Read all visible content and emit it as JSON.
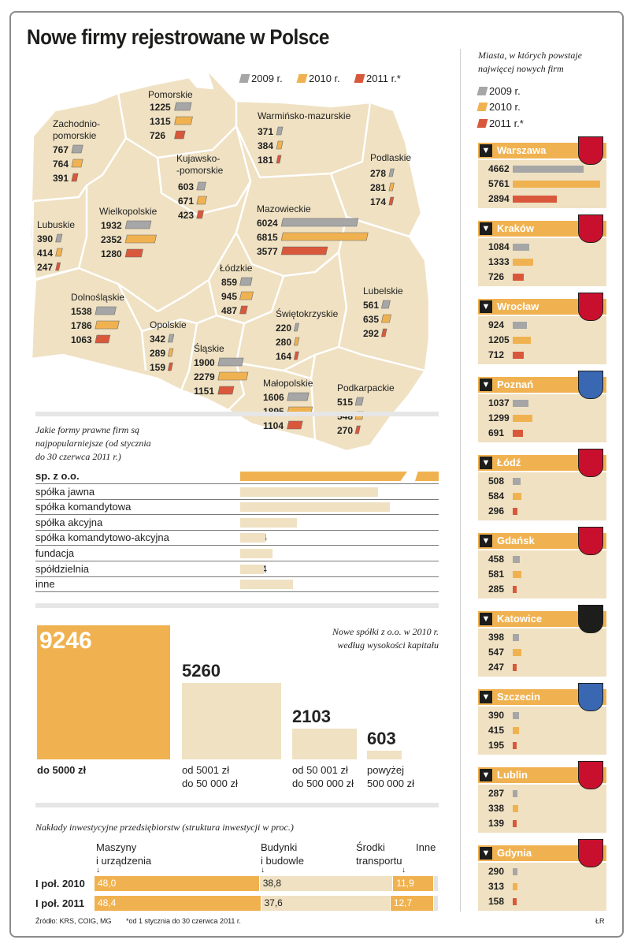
{
  "title": "Nowe firmy rejestrowane w Polsce",
  "legend": {
    "y2009": "2009 r.",
    "y2010": "2010 r.",
    "y2011": "2011 r.*"
  },
  "colors": {
    "y2009": "#a6a6a6",
    "y2010": "#f0b250",
    "y2011": "#d9583b",
    "map_fill": "#efe1c2",
    "panel": "#efe1c2"
  },
  "map": {
    "regions": [
      {
        "name": "Pomorskie",
        "values": [
          "1225",
          "1315",
          "726"
        ],
        "n": [
          1225,
          1315,
          726
        ]
      },
      {
        "name": "Zachodnio-\npomorskie",
        "line1": "Zachodnio-",
        "line2": "pomorskie",
        "values": [
          "767",
          "764",
          "391"
        ],
        "n": [
          767,
          764,
          391
        ]
      },
      {
        "name": "Warmińsko-mazurskie",
        "values": [
          "371",
          "384",
          "181"
        ],
        "n": [
          371,
          384,
          181
        ]
      },
      {
        "name": "Podlaskie",
        "values": [
          "278",
          "281",
          "174"
        ],
        "n": [
          278,
          281,
          174
        ]
      },
      {
        "name": "Kujawsko-\n-pomorskie",
        "line1": "Kujawsko-",
        "line2": "-pomorskie",
        "values": [
          "603",
          "671",
          "423"
        ],
        "n": [
          603,
          671,
          423
        ]
      },
      {
        "name": "Lubuskie",
        "values": [
          "390",
          "414",
          "247"
        ],
        "n": [
          390,
          414,
          247
        ]
      },
      {
        "name": "Wielkopolskie",
        "values": [
          "1932",
          "2352",
          "1280"
        ],
        "n": [
          1932,
          2352,
          1280
        ]
      },
      {
        "name": "Mazowieckie",
        "values": [
          "6024",
          "6815",
          "3577"
        ],
        "n": [
          6024,
          6815,
          3577
        ]
      },
      {
        "name": "Łódzkie",
        "values": [
          "859",
          "945",
          "487"
        ],
        "n": [
          859,
          945,
          487
        ]
      },
      {
        "name": "Lubelskie",
        "values": [
          "561",
          "635",
          "292"
        ],
        "n": [
          561,
          635,
          292
        ]
      },
      {
        "name": "Dolnośląskie",
        "values": [
          "1538",
          "1786",
          "1063"
        ],
        "n": [
          1538,
          1786,
          1063
        ]
      },
      {
        "name": "Opolskie",
        "values": [
          "342",
          "289",
          "159"
        ],
        "n": [
          342,
          289,
          159
        ]
      },
      {
        "name": "Świętokrzyskie",
        "values": [
          "220",
          "280",
          "164"
        ],
        "n": [
          220,
          280,
          164
        ]
      },
      {
        "name": "Śląskie",
        "values": [
          "1900",
          "2279",
          "1151"
        ],
        "n": [
          1900,
          2279,
          1151
        ]
      },
      {
        "name": "Małopolskie",
        "values": [
          "1606",
          "1895",
          "1104"
        ],
        "n": [
          1606,
          1895,
          1104
        ]
      },
      {
        "name": "Podkarpackie",
        "values": [
          "515",
          "548",
          "270"
        ],
        "n": [
          515,
          548,
          270
        ]
      }
    ]
  },
  "legal": {
    "title": "Jakie formy prawne firm są najpopularniejsze (od stycznia do 30 czerwca 2011 r.)",
    "title_l1": "Jakie formy prawne firm są",
    "title_l2": "najpopularniejsze (od stycznia",
    "title_l3": "do 30 czerwca 2011 r.)",
    "rows": [
      {
        "label": "sp. z o.o.",
        "value": "8763",
        "n": 8763
      },
      {
        "label": "spółka jawna",
        "value": "846",
        "n": 846
      },
      {
        "label": "spółka komandytowa",
        "value": "916",
        "n": 916
      },
      {
        "label": "spółka akcyjna",
        "value": "345",
        "n": 345
      },
      {
        "label": "spółka komandytowo-akcyjna",
        "value": "154",
        "n": 154
      },
      {
        "label": "fundacja",
        "value": "199",
        "n": 199
      },
      {
        "label": "spółdzielnia",
        "value": "144",
        "n": 144
      },
      {
        "label": "inne",
        "value": "323",
        "n": 323
      }
    ]
  },
  "capital": {
    "title_l1": "Nowe spółki z o.o. w 2010 r.",
    "title_l2": "według wysokości kapitału",
    "items": [
      {
        "value": "9246",
        "n": 9246,
        "l1": "do 5000 zł",
        "l2": ""
      },
      {
        "value": "5260",
        "n": 5260,
        "l1": "od 5001 zł",
        "l2": "do 50 000 zł"
      },
      {
        "value": "2103",
        "n": 2103,
        "l1": "od 50 001 zł",
        "l2": "do 500 000 zł"
      },
      {
        "value": "603",
        "n": 603,
        "l1": "powyżej",
        "l2": "500 000 zł"
      }
    ]
  },
  "investment": {
    "title": "Nakłady inwestycyjne przedsiębiorstw (struktura inwestycji w proc.)",
    "categories": [
      {
        "l1": "Maszyny",
        "l2": "i urządzenia"
      },
      {
        "l1": "Budynki",
        "l2": "i budowle"
      },
      {
        "l1": "Środki",
        "l2": "transportu"
      },
      {
        "l1": "Inne",
        "l2": ""
      }
    ],
    "rows": [
      {
        "label": "I poł. 2010",
        "values": [
          "48,0",
          "38,8",
          "11,9"
        ],
        "n": [
          48.0,
          38.8,
          11.9,
          1.3
        ]
      },
      {
        "label": "I poł. 2011",
        "values": [
          "48,4",
          "37,6",
          "12,7"
        ],
        "n": [
          48.4,
          37.6,
          12.7,
          1.3
        ]
      }
    ]
  },
  "cities": {
    "title_l1": "Miasta, w których powstaje",
    "title_l2": "najwięcej nowych firm",
    "items": [
      {
        "name": "Warszawa",
        "values": [
          "4662",
          "5761",
          "2894"
        ],
        "n": [
          4662,
          5761,
          2894
        ]
      },
      {
        "name": "Kraków",
        "values": [
          "1084",
          "1333",
          "726"
        ],
        "n": [
          1084,
          1333,
          726
        ]
      },
      {
        "name": "Wrocław",
        "values": [
          "924",
          "1205",
          "712"
        ],
        "n": [
          924,
          1205,
          712
        ]
      },
      {
        "name": "Poznań",
        "values": [
          "1037",
          "1299",
          "691"
        ],
        "n": [
          1037,
          1299,
          691
        ]
      },
      {
        "name": "Łódź",
        "values": [
          "508",
          "584",
          "296"
        ],
        "n": [
          508,
          584,
          296
        ]
      },
      {
        "name": "Gdańsk",
        "values": [
          "458",
          "581",
          "285"
        ],
        "n": [
          458,
          581,
          285
        ]
      },
      {
        "name": "Katowice",
        "values": [
          "398",
          "547",
          "247"
        ],
        "n": [
          398,
          547,
          247
        ]
      },
      {
        "name": "Szczecin",
        "values": [
          "390",
          "415",
          "195"
        ],
        "n": [
          390,
          415,
          195
        ]
      },
      {
        "name": "Lublin",
        "values": [
          "287",
          "338",
          "139"
        ],
        "n": [
          287,
          338,
          139
        ]
      },
      {
        "name": "Gdynia",
        "values": [
          "290",
          "313",
          "158"
        ],
        "n": [
          290,
          313,
          158
        ]
      }
    ]
  },
  "footer": {
    "source": "Źródło: KRS, COIG, MG",
    "note": "*od 1 stycznia do 30 czerwca 2011 r.",
    "author": "ŁR"
  },
  "chart_data": [
    {
      "type": "bar",
      "title": "Nowe firmy rejestrowane w Polsce",
      "categories": [
        "Pomorskie",
        "Zachodniopomorskie",
        "Warmińsko-mazurskie",
        "Podlaskie",
        "Kujawsko-pomorskie",
        "Lubuskie",
        "Wielkopolskie",
        "Mazowieckie",
        "Łódzkie",
        "Lubelskie",
        "Dolnośląskie",
        "Opolskie",
        "Świętokrzyskie",
        "Śląskie",
        "Małopolskie",
        "Podkarpackie"
      ],
      "series": [
        {
          "name": "2009 r.",
          "values": [
            1225,
            767,
            371,
            278,
            603,
            390,
            1932,
            6024,
            859,
            561,
            1538,
            342,
            220,
            1900,
            1606,
            515
          ]
        },
        {
          "name": "2010 r.",
          "values": [
            1315,
            764,
            384,
            281,
            671,
            414,
            2352,
            6815,
            945,
            635,
            1786,
            289,
            280,
            2279,
            1895,
            548
          ]
        },
        {
          "name": "2011 r.*",
          "values": [
            726,
            391,
            181,
            174,
            423,
            247,
            1280,
            3577,
            487,
            292,
            1063,
            159,
            164,
            1151,
            1104,
            270
          ]
        }
      ]
    },
    {
      "type": "bar",
      "title": "Miasta, w których powstaje najwięcej nowych firm",
      "categories": [
        "Warszawa",
        "Kraków",
        "Wrocław",
        "Poznań",
        "Łódź",
        "Gdańsk",
        "Katowice",
        "Szczecin",
        "Lublin",
        "Gdynia"
      ],
      "series": [
        {
          "name": "2009 r.",
          "values": [
            4662,
            1084,
            924,
            1037,
            508,
            458,
            398,
            390,
            287,
            290
          ]
        },
        {
          "name": "2010 r.",
          "values": [
            5761,
            1333,
            1205,
            1299,
            584,
            581,
            547,
            415,
            338,
            313
          ]
        },
        {
          "name": "2011 r.*",
          "values": [
            2894,
            726,
            712,
            691,
            296,
            285,
            247,
            195,
            139,
            158
          ]
        }
      ]
    },
    {
      "type": "bar",
      "title": "Jakie formy prawne firm są najpopularniejsze (od stycznia do 30 czerwca 2011 r.)",
      "categories": [
        "sp. z o.o.",
        "spółka jawna",
        "spółka komandytowa",
        "spółka akcyjna",
        "spółka komandytowo-akcyjna",
        "fundacja",
        "spółdzielnia",
        "inne"
      ],
      "values": [
        8763,
        846,
        916,
        345,
        154,
        199,
        144,
        323
      ]
    },
    {
      "type": "bar",
      "title": "Nowe spółki z o.o. w 2010 r. według wysokości kapitału",
      "categories": [
        "do 5000 zł",
        "od 5001 zł do 50 000 zł",
        "od 50 001 zł do 500 000 zł",
        "powyżej 500 000 zł"
      ],
      "values": [
        9246,
        5260,
        2103,
        603
      ]
    },
    {
      "type": "bar",
      "title": "Nakłady inwestycyjne przedsiębiorstw (struktura inwestycji w proc.)",
      "categories": [
        "I poł. 2010",
        "I poł. 2011"
      ],
      "series": [
        {
          "name": "Maszyny i urządzenia",
          "values": [
            48.0,
            48.4
          ]
        },
        {
          "name": "Budynki i budowle",
          "values": [
            38.8,
            37.6
          ]
        },
        {
          "name": "Środki transportu",
          "values": [
            11.9,
            12.7
          ]
        },
        {
          "name": "Inne"
        }
      ]
    }
  ]
}
